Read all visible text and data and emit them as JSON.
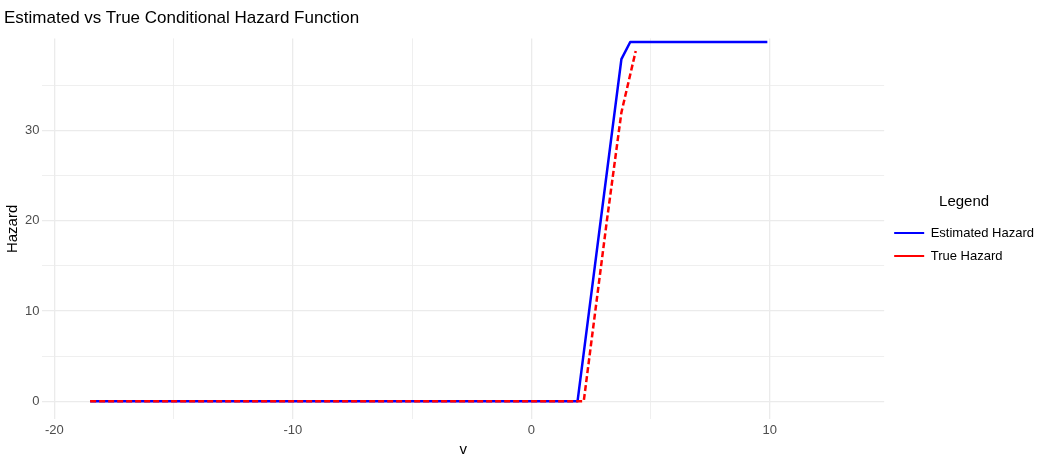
{
  "chart_data": {
    "type": "line",
    "title": "Estimated vs True Conditional Hazard Function",
    "xlabel": "v",
    "ylabel": "Hazard",
    "legend_title": "Legend",
    "legend": "right",
    "grid": true,
    "marker": "none",
    "xlim": [
      -20.5,
      14.8
    ],
    "xticks": [
      -20,
      {
        "value": -15,
        "label": null
      },
      -10,
      {
        "value": -5,
        "label": null
      },
      0,
      {
        "value": 5,
        "label": null
      },
      10
    ],
    "ylim": [
      -2,
      40.2
    ],
    "yticks": [
      0,
      {
        "value": 5,
        "label": null
      },
      10,
      {
        "value": 15,
        "label": null
      },
      20,
      {
        "value": 25,
        "label": null
      },
      30,
      {
        "value": 35,
        "label": null
      }
    ],
    "series": [
      {
        "name": "Estimated Hazard",
        "color": "#0000ff",
        "line_style": "solid",
        "x": [
          -18.5,
          1.94,
          2.91,
          3.78,
          4.15,
          9.9
        ],
        "values": [
          0,
          0,
          20,
          37.9,
          39.8,
          39.8
        ]
      },
      {
        "name": "True Hazard",
        "color": "#ff0000",
        "line_style": "dashed",
        "x": [
          -18.5,
          2.2,
          3.17,
          3.78,
          4.38
        ],
        "values": [
          0,
          0,
          20,
          32,
          38.8
        ]
      }
    ]
  }
}
